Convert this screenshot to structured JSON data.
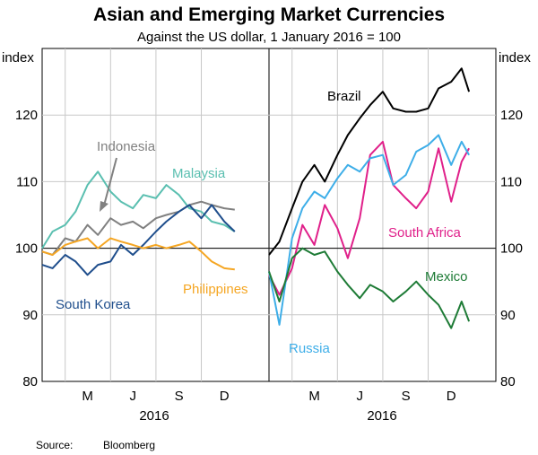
{
  "title": "Asian and Emerging Market Currencies",
  "subtitle": "Against the US dollar, 1 January 2016 = 100",
  "source_label": "Source:",
  "source_value": "Bloomberg",
  "colors": {
    "indonesia": "#808080",
    "malaysia": "#5abfb0",
    "south_korea": "#1f4e8c",
    "philippines": "#f5a623",
    "brazil": "#000000",
    "south_africa": "#e0208a",
    "russia": "#3eaee8",
    "mexico": "#1e7b36"
  },
  "chart_data": [
    {
      "type": "line",
      "panel": "left",
      "ylabel_left": "index",
      "ylim": [
        80,
        130
      ],
      "yticks": [
        80,
        90,
        100,
        110,
        120
      ],
      "reference_line": 100,
      "xlim": [
        "2016-03-01",
        "2016-12-31"
      ],
      "xtick_labels": [
        "M",
        "J",
        "S",
        "D"
      ],
      "xtick_dates": [
        "2016-05-01",
        "2016-07-01",
        "2016-09-01",
        "2016-11-01"
      ],
      "xgrid_dates": [
        "2016-04-01",
        "2016-06-01",
        "2016-08-01",
        "2016-10-01"
      ],
      "xlabel": "2016",
      "series": [
        {
          "name": "Indonesia",
          "color_key": "indonesia",
          "x": [
            "2016-03-01",
            "2016-03-15",
            "2016-04-01",
            "2016-04-15",
            "2016-05-01",
            "2016-05-15",
            "2016-06-01",
            "2016-06-15",
            "2016-07-01",
            "2016-07-15",
            "2016-08-01",
            "2016-08-15",
            "2016-09-01",
            "2016-09-15",
            "2016-10-01",
            "2016-10-15",
            "2016-11-01",
            "2016-11-15"
          ],
          "values": [
            99.5,
            99.0,
            101.5,
            101.0,
            103.5,
            102.0,
            104.5,
            103.5,
            104.0,
            103.0,
            104.5,
            105.0,
            105.5,
            106.5,
            107.0,
            106.5,
            106.0,
            105.8
          ]
        },
        {
          "name": "Malaysia",
          "color_key": "malaysia",
          "x": [
            "2016-03-01",
            "2016-03-15",
            "2016-04-01",
            "2016-04-15",
            "2016-05-01",
            "2016-05-15",
            "2016-06-01",
            "2016-06-15",
            "2016-07-01",
            "2016-07-15",
            "2016-08-01",
            "2016-08-15",
            "2016-09-01",
            "2016-09-15",
            "2016-10-01",
            "2016-10-15",
            "2016-11-01",
            "2016-11-15"
          ],
          "values": [
            100.0,
            102.5,
            103.5,
            105.5,
            109.5,
            111.5,
            108.5,
            107.0,
            106.0,
            108.0,
            107.5,
            109.5,
            108.0,
            106.0,
            105.5,
            104.0,
            103.5,
            102.5
          ]
        },
        {
          "name": "South Korea",
          "color_key": "south_korea",
          "x": [
            "2016-03-01",
            "2016-03-15",
            "2016-04-01",
            "2016-04-15",
            "2016-05-01",
            "2016-05-15",
            "2016-06-01",
            "2016-06-15",
            "2016-07-01",
            "2016-07-15",
            "2016-08-01",
            "2016-08-15",
            "2016-09-01",
            "2016-09-15",
            "2016-10-01",
            "2016-10-15",
            "2016-11-01",
            "2016-11-15"
          ],
          "values": [
            97.5,
            97.0,
            99.0,
            98.0,
            96.0,
            97.5,
            98.0,
            100.5,
            99.0,
            100.5,
            102.5,
            104.0,
            105.5,
            106.5,
            104.5,
            106.5,
            104.0,
            102.5
          ]
        },
        {
          "name": "Philippines",
          "color_key": "philippines",
          "x": [
            "2016-03-01",
            "2016-03-15",
            "2016-04-01",
            "2016-04-15",
            "2016-05-01",
            "2016-05-15",
            "2016-06-01",
            "2016-06-15",
            "2016-07-01",
            "2016-07-15",
            "2016-08-01",
            "2016-08-15",
            "2016-09-01",
            "2016-09-15",
            "2016-10-01",
            "2016-10-15",
            "2016-11-01",
            "2016-11-15"
          ],
          "values": [
            99.5,
            99.0,
            100.5,
            101.0,
            101.5,
            100.0,
            101.5,
            101.0,
            100.5,
            100.0,
            100.5,
            100.0,
            100.5,
            101.0,
            99.5,
            98.0,
            97.0,
            96.8
          ]
        }
      ],
      "annotations": [
        {
          "text": "Indonesia",
          "color_key": "indonesia",
          "arrow": true
        },
        {
          "text": "Malaysia",
          "color_key": "malaysia"
        },
        {
          "text": "South Korea",
          "color_key": "south_korea"
        },
        {
          "text": "Philippines",
          "color_key": "philippines"
        }
      ]
    },
    {
      "type": "line",
      "panel": "right",
      "ylabel_right": "index",
      "ylim": [
        80,
        130
      ],
      "yticks": [
        80,
        90,
        100,
        110,
        120
      ],
      "reference_line": 100,
      "xlim": [
        "2016-03-01",
        "2016-12-31"
      ],
      "xtick_labels": [
        "M",
        "J",
        "S",
        "D"
      ],
      "xtick_dates": [
        "2016-05-01",
        "2016-07-01",
        "2016-09-01",
        "2016-11-01"
      ],
      "xgrid_dates": [
        "2016-04-01",
        "2016-06-01",
        "2016-08-01",
        "2016-10-01"
      ],
      "xlabel": "2016",
      "series": [
        {
          "name": "Brazil",
          "color_key": "brazil",
          "x": [
            "2016-03-01",
            "2016-03-15",
            "2016-04-01",
            "2016-04-15",
            "2016-05-01",
            "2016-05-15",
            "2016-06-01",
            "2016-06-15",
            "2016-07-01",
            "2016-07-15",
            "2016-08-01",
            "2016-08-15",
            "2016-09-01",
            "2016-09-15",
            "2016-10-01",
            "2016-10-15",
            "2016-11-01",
            "2016-11-15",
            "2016-11-25"
          ],
          "values": [
            99.0,
            101.0,
            106.0,
            110.0,
            112.5,
            110.0,
            114.0,
            117.0,
            119.5,
            121.5,
            123.5,
            121.0,
            120.5,
            120.5,
            121.0,
            124.0,
            125.0,
            127.0,
            123.5
          ]
        },
        {
          "name": "South Africa",
          "color_key": "south_africa",
          "x": [
            "2016-03-01",
            "2016-03-15",
            "2016-04-01",
            "2016-04-15",
            "2016-05-01",
            "2016-05-15",
            "2016-06-01",
            "2016-06-15",
            "2016-07-01",
            "2016-07-15",
            "2016-08-01",
            "2016-08-15",
            "2016-09-01",
            "2016-09-15",
            "2016-10-01",
            "2016-10-15",
            "2016-11-01",
            "2016-11-15",
            "2016-11-25"
          ],
          "values": [
            96.0,
            93.0,
            97.0,
            103.5,
            100.5,
            106.5,
            103.0,
            98.5,
            104.5,
            114.0,
            116.0,
            109.5,
            107.5,
            106.0,
            108.5,
            115.0,
            107.0,
            113.0,
            115.0
          ]
        },
        {
          "name": "Russia",
          "color_key": "russia",
          "x": [
            "2016-03-01",
            "2016-03-15",
            "2016-04-01",
            "2016-04-15",
            "2016-05-01",
            "2016-05-15",
            "2016-06-01",
            "2016-06-15",
            "2016-07-01",
            "2016-07-15",
            "2016-08-01",
            "2016-08-15",
            "2016-09-01",
            "2016-09-15",
            "2016-10-01",
            "2016-10-15",
            "2016-11-01",
            "2016-11-15",
            "2016-11-25"
          ],
          "values": [
            96.5,
            88.5,
            101.5,
            106.0,
            108.5,
            107.5,
            110.5,
            112.5,
            111.5,
            113.5,
            114.0,
            109.5,
            111.0,
            114.5,
            115.5,
            117.0,
            112.5,
            116.0,
            114.0
          ]
        },
        {
          "name": "Mexico",
          "color_key": "mexico",
          "x": [
            "2016-03-01",
            "2016-03-15",
            "2016-04-01",
            "2016-04-15",
            "2016-05-01",
            "2016-05-15",
            "2016-06-01",
            "2016-06-15",
            "2016-07-01",
            "2016-07-15",
            "2016-08-01",
            "2016-08-15",
            "2016-09-01",
            "2016-09-15",
            "2016-10-01",
            "2016-10-15",
            "2016-11-01",
            "2016-11-15",
            "2016-11-25"
          ],
          "values": [
            96.5,
            92.0,
            98.5,
            100.0,
            99.0,
            99.5,
            96.5,
            94.5,
            92.5,
            94.5,
            93.5,
            92.0,
            93.5,
            95.0,
            93.0,
            91.5,
            88.0,
            92.0,
            89.0
          ]
        }
      ],
      "annotations": [
        {
          "text": "Brazil",
          "color_key": "brazil"
        },
        {
          "text": "South Africa",
          "color_key": "south_africa"
        },
        {
          "text": "Russia",
          "color_key": "russia"
        },
        {
          "text": "Mexico",
          "color_key": "mexico"
        }
      ]
    }
  ]
}
